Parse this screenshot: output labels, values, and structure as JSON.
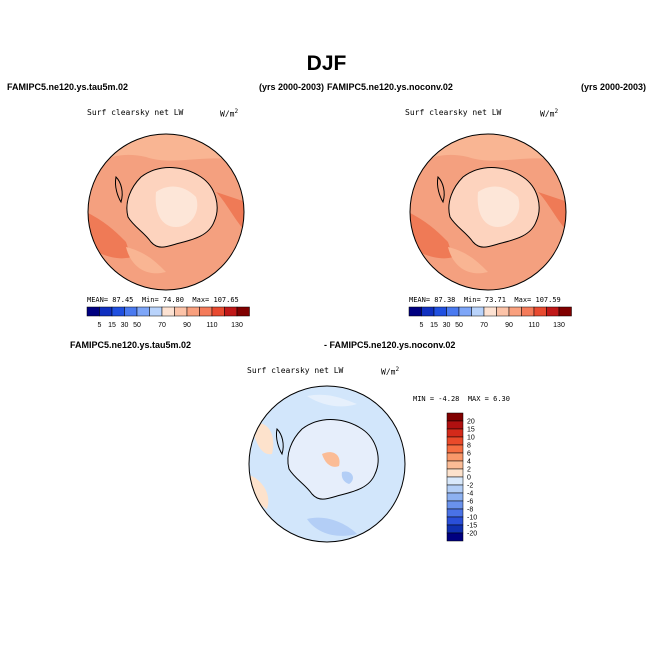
{
  "figure": {
    "season": "DJF",
    "left_header": "FAMIPC5.ne120.ys.tau5m.02",
    "years": "(yrs 2000-2003)",
    "right_header": "FAMIPC5.ne120.ys.noconv.02",
    "years_right": "(yrs 2000-2003)",
    "diff_header_left": "FAMIPC5.ne120.ys.tau5m.02",
    "diff_header_right": "- FAMIPC5.ne120.ys.noconv.02"
  },
  "colors": {
    "land_outline": "#000000",
    "ocean_base": "#f4a07f",
    "ice_base": "#fdd3be",
    "diff_base": "#d2e6fb"
  },
  "chart_data": [
    {
      "type": "heatmap",
      "name": "panel-tau5m",
      "title": "Surf clearsky net LW",
      "units": "W/m2",
      "stats": {
        "mean_label": "MEAN=",
        "mean": "87.45",
        "min_label": "Min=",
        "min": "74.80",
        "max_label": "Max=",
        "max": "107.65"
      },
      "colorbar": {
        "tick_labels": [
          "5",
          "15",
          "30",
          "50",
          "70",
          "90",
          "110",
          "130"
        ],
        "colors": [
          "#000080",
          "#1030c0",
          "#2050e0",
          "#4a7af0",
          "#7ea6f8",
          "#b9d3fb",
          "#fde2d2",
          "#fcc3a8",
          "#f9a07e",
          "#f47b5a",
          "#e84a30",
          "#c01818",
          "#800000"
        ]
      }
    },
    {
      "type": "heatmap",
      "name": "panel-noconv",
      "title": "Surf clearsky net LW",
      "units": "W/m2",
      "stats": {
        "mean_label": "MEAN=",
        "mean": "87.38",
        "min_label": "Min=",
        "min": "73.71",
        "max_label": "Max=",
        "max": "107.59"
      },
      "colorbar": {
        "tick_labels": [
          "5",
          "15",
          "30",
          "50",
          "70",
          "90",
          "110",
          "130"
        ],
        "colors": [
          "#000080",
          "#1030c0",
          "#2050e0",
          "#4a7af0",
          "#7ea6f8",
          "#b9d3fb",
          "#fde2d2",
          "#fcc3a8",
          "#f9a07e",
          "#f47b5a",
          "#e84a30",
          "#c01818",
          "#800000"
        ]
      }
    },
    {
      "type": "heatmap",
      "name": "panel-difference",
      "title": "Surf clearsky net LW",
      "units": "W/m2",
      "stats": {
        "min_label": "MIN =",
        "min": "-4.28",
        "max_label": "MAX =",
        "max": "6.30"
      },
      "colorbar": {
        "tick_labels": [
          "20",
          "15",
          "10",
          "8",
          "6",
          "4",
          "2",
          "0",
          "-2",
          "-4",
          "-6",
          "-8",
          "-10",
          "-15",
          "-20"
        ],
        "colors": [
          "#800000",
          "#b01010",
          "#d42a1a",
          "#ea4a2a",
          "#f66e42",
          "#f9986a",
          "#fbbc96",
          "#fde2cc",
          "#d9e9fb",
          "#b3cef6",
          "#8db1f1",
          "#6a92ec",
          "#4a72e6",
          "#2a4fd8",
          "#1030b0",
          "#000080"
        ]
      }
    }
  ]
}
